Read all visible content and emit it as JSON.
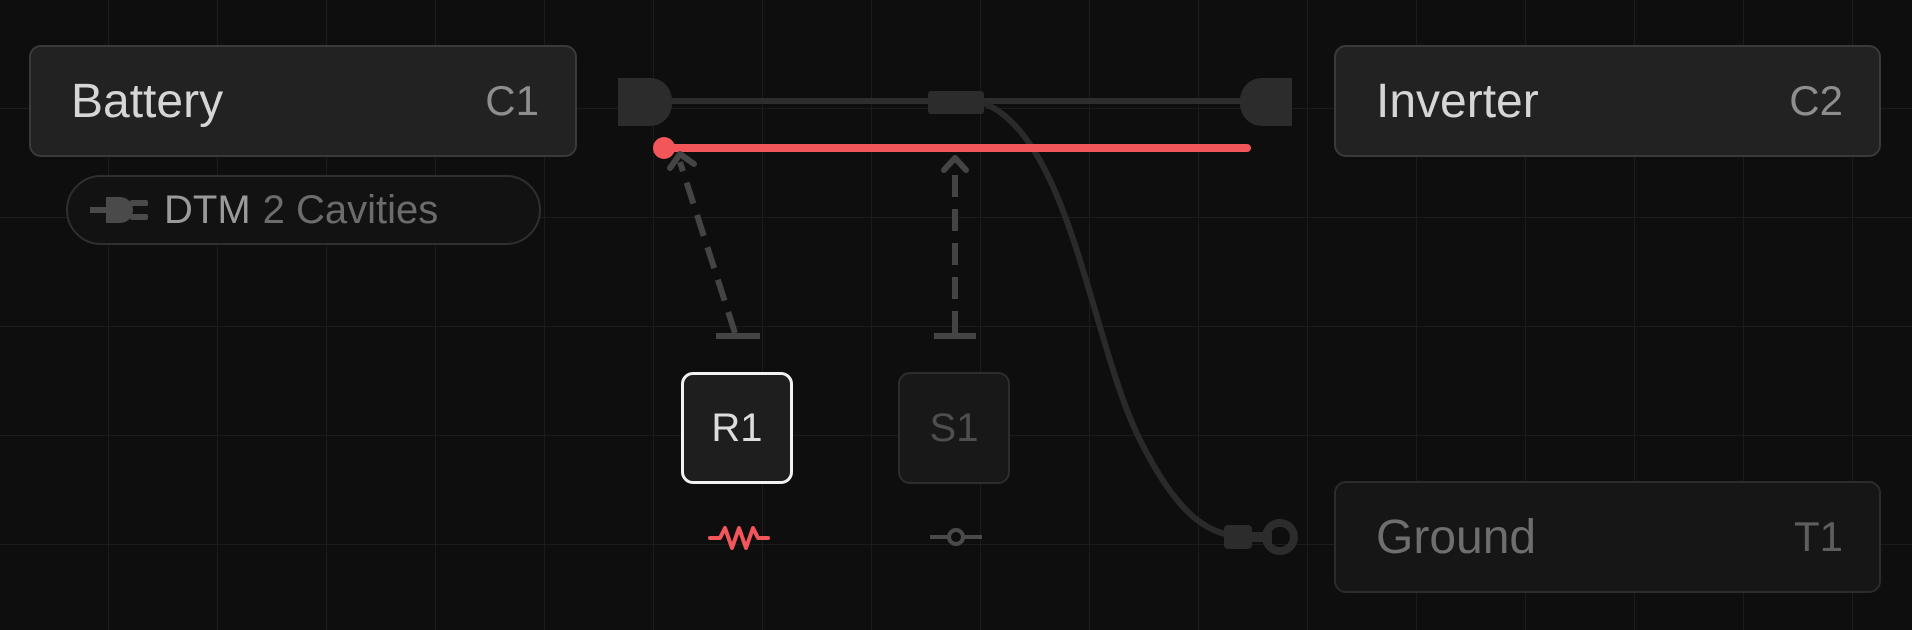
{
  "connectors": {
    "battery": {
      "title": "Battery",
      "ref": "C1"
    },
    "inverter": {
      "title": "Inverter",
      "ref": "C2"
    },
    "ground": {
      "title": "Ground",
      "ref": "T1"
    }
  },
  "battery_pill": {
    "icon": "plug-icon",
    "code": "DTM",
    "cavities": "2 Cavities"
  },
  "components": {
    "r1": {
      "label": "R1",
      "symbol": "resistor-icon"
    },
    "s1": {
      "label": "S1",
      "symbol": "switch-icon"
    }
  },
  "colors": {
    "background": "#0e0e0e",
    "grid": "#1c1c1c",
    "accent_wire": "#f2555a",
    "node": "#222222",
    "dashed_link": "#444444"
  }
}
